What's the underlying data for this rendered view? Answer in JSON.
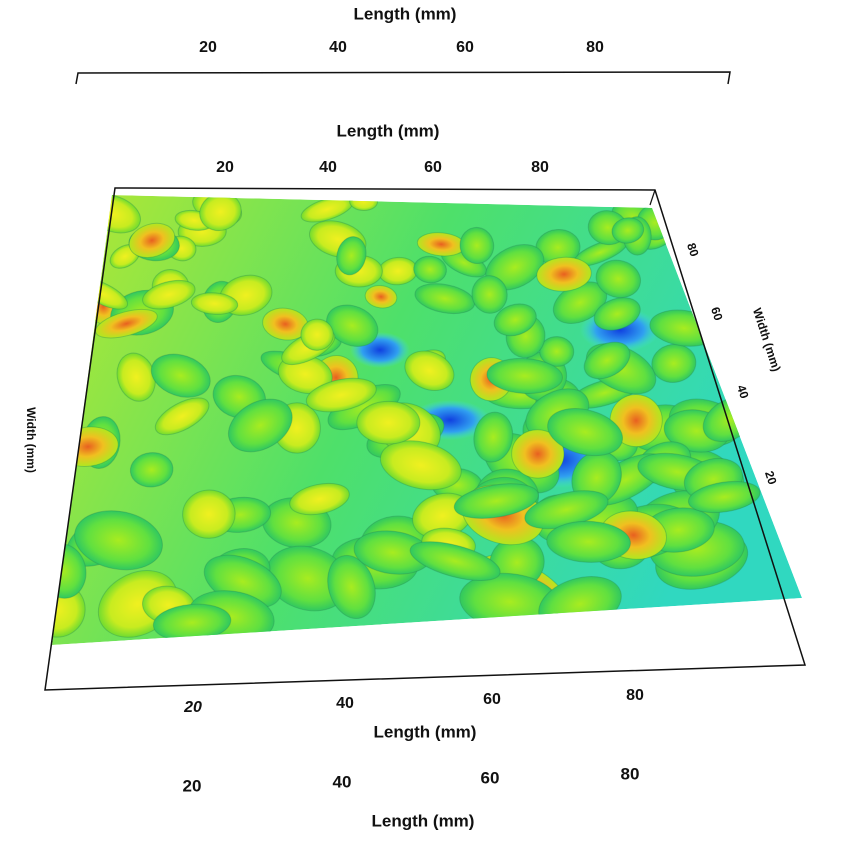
{
  "top_strip": {
    "axis_title": "Length (mm)",
    "ticks": [
      "20",
      "40",
      "60",
      "80"
    ]
  },
  "main_plot": {
    "top_axis_title": "Length (mm)",
    "top_ticks": [
      "20",
      "40",
      "60",
      "80"
    ],
    "right_axis_title": "Width (mm)",
    "right_ticks": [
      "80",
      "60",
      "40",
      "20"
    ],
    "left_axis_title": "Width (mm)",
    "bottom_ticks": [
      "20",
      "40",
      "60",
      "80"
    ],
    "bottom_axis_title": "Length (mm)"
  },
  "bottom_strip": {
    "ticks": [
      "20",
      "40",
      "60",
      "80"
    ],
    "axis_title": "Length (mm)"
  }
}
